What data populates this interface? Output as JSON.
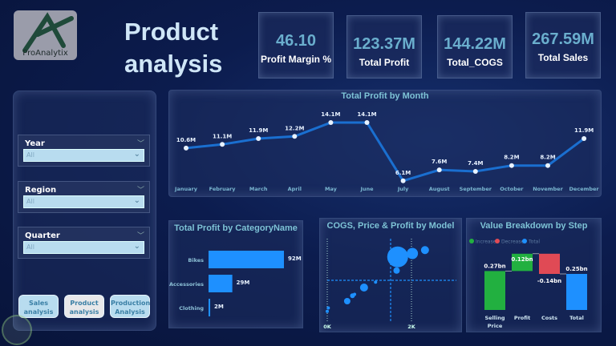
{
  "logo": {
    "text": "ProAnalytix"
  },
  "page_title": {
    "line1": "Product",
    "line2": "analysis"
  },
  "kpis": [
    {
      "value": "46.10",
      "label": "Profit Margin %"
    },
    {
      "value": "123.37M",
      "label": "Total Profit"
    },
    {
      "value": "144.22M",
      "label": "Total_COGS"
    },
    {
      "value": "267.59M",
      "label": "Total Sales"
    }
  ],
  "filters": [
    {
      "label": "Year",
      "value": "All"
    },
    {
      "label": "Region",
      "value": "All"
    },
    {
      "label": "Quarter",
      "value": "All"
    }
  ],
  "nav_buttons": [
    {
      "line1": "Sales",
      "line2": "analysis",
      "active": false
    },
    {
      "line1": "Product",
      "line2": "analysis",
      "active": true
    },
    {
      "line1": "Production",
      "line2": "Analysis",
      "active": false
    }
  ],
  "colors": {
    "accent": "#1e90ff",
    "line": "#1a6fd0",
    "increase": "#22b040",
    "decrease": "#e04a55",
    "total": "#1e90ff",
    "kpi_value": "#6aaecd"
  },
  "profit_by_month": {
    "title": "Total Profit by Month",
    "months": [
      "January",
      "February",
      "March",
      "April",
      "May",
      "June",
      "July",
      "August",
      "September",
      "October",
      "November",
      "December"
    ],
    "values": [
      10.6,
      11.1,
      11.9,
      12.2,
      14.1,
      14.1,
      6.1,
      7.6,
      7.4,
      8.2,
      8.2,
      11.9
    ],
    "labels": [
      "10.6M",
      "11.1M",
      "11.9M",
      "12.2M",
      "14.1M",
      "14.1M",
      "6.1M",
      "7.6M",
      "7.4M",
      "8.2M",
      "8.2M",
      "11.9M"
    ]
  },
  "profit_by_category": {
    "title": "Total Profit by CategoryName",
    "categories": [
      "Bikes",
      "Accessories",
      "Clothing"
    ],
    "values": [
      92,
      29,
      2
    ],
    "labels": [
      "92M",
      "29M",
      "2M"
    ]
  },
  "scatter": {
    "title": "COGS, Price & Profit by Model",
    "x_ticks": [
      "0K",
      "2K"
    ],
    "points": [
      [
        0.0,
        0.05,
        2
      ],
      [
        0.05,
        0.1,
        2
      ],
      [
        0.95,
        0.2,
        4
      ],
      [
        1.2,
        0.28,
        3
      ],
      [
        1.3,
        0.3,
        2
      ],
      [
        1.75,
        0.4,
        5
      ],
      [
        2.3,
        0.48,
        2
      ],
      [
        3.3,
        0.65,
        4
      ],
      [
        3.35,
        0.85,
        13
      ],
      [
        4.05,
        0.9,
        7
      ],
      [
        4.65,
        0.95,
        5
      ]
    ]
  },
  "waterfall": {
    "title": "Value Breakdown by Step",
    "legend": [
      "Increase",
      "Decrease",
      "Total"
    ],
    "steps": [
      {
        "label": "Selling Price",
        "value": 0.27,
        "type": "increase",
        "text": "0.27bn"
      },
      {
        "label": "Profit",
        "value": 0.12,
        "type": "increase",
        "text": "0.12bn"
      },
      {
        "label": "Costs",
        "value": -0.14,
        "type": "decrease",
        "text": "-0.14bn"
      },
      {
        "label": "Total",
        "value": 0.25,
        "type": "total",
        "text": "0.25bn"
      }
    ]
  }
}
